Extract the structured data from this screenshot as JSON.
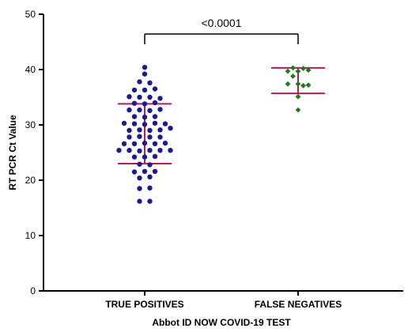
{
  "chart_data": {
    "type": "scatter",
    "title": "",
    "xlabel": "Abbot ID NOW COVID-19 TEST",
    "ylabel": "RT PCR Ct Value",
    "ylim": [
      0,
      50
    ],
    "yticks": [
      0,
      10,
      20,
      30,
      40,
      50
    ],
    "ytick_labels": [
      "0",
      "10",
      "20",
      "30",
      "40",
      "50"
    ],
    "categories": [
      "TRUE POSITIVES",
      "FALSE NEGATIVES"
    ],
    "grid": false,
    "series": [
      {
        "category": "TRUE POSITIVES",
        "marker": "circle",
        "color": "#1b1b8c",
        "mean": 28.4,
        "sd": 5.4,
        "bar_upper": 33.8,
        "bar_lower": 23.0,
        "points": [
          {
            "offset": 0,
            "y": 40.4
          },
          {
            "offset": 0,
            "y": 39.2
          },
          {
            "offset": -1,
            "y": 37.8
          },
          {
            "offset": 1,
            "y": 37.6
          },
          {
            "offset": -2,
            "y": 36.3
          },
          {
            "offset": 0,
            "y": 36.3
          },
          {
            "offset": 2,
            "y": 36.5
          },
          {
            "offset": -3,
            "y": 35.1
          },
          {
            "offset": -1,
            "y": 35.0
          },
          {
            "offset": 1,
            "y": 35.0
          },
          {
            "offset": 3,
            "y": 34.8
          },
          {
            "offset": -2,
            "y": 33.9
          },
          {
            "offset": 0,
            "y": 33.8
          },
          {
            "offset": 2,
            "y": 34.0
          },
          {
            "offset": -3,
            "y": 32.7
          },
          {
            "offset": -1,
            "y": 32.7
          },
          {
            "offset": 1,
            "y": 32.6
          },
          {
            "offset": 3,
            "y": 32.8
          },
          {
            "offset": -2,
            "y": 31.5
          },
          {
            "offset": 0,
            "y": 31.4
          },
          {
            "offset": 2,
            "y": 31.5
          },
          {
            "offset": -4,
            "y": 30.3
          },
          {
            "offset": -2,
            "y": 30.2
          },
          {
            "offset": 0,
            "y": 30.1
          },
          {
            "offset": 2,
            "y": 30.3
          },
          {
            "offset": 4,
            "y": 30.2
          },
          {
            "offset": -3,
            "y": 29.0
          },
          {
            "offset": -1,
            "y": 29.1
          },
          {
            "offset": 1,
            "y": 29.0
          },
          {
            "offset": 3,
            "y": 29.1
          },
          {
            "offset": 5,
            "y": 29.4
          },
          {
            "offset": -3,
            "y": 27.8
          },
          {
            "offset": -1,
            "y": 27.9
          },
          {
            "offset": 1,
            "y": 27.8
          },
          {
            "offset": 3,
            "y": 27.8
          },
          {
            "offset": -4,
            "y": 26.6
          },
          {
            "offset": -2,
            "y": 26.6
          },
          {
            "offset": 0,
            "y": 26.7
          },
          {
            "offset": 2,
            "y": 26.6
          },
          {
            "offset": 4,
            "y": 26.7
          },
          {
            "offset": -5,
            "y": 25.4
          },
          {
            "offset": -3,
            "y": 25.4
          },
          {
            "offset": -1,
            "y": 25.3
          },
          {
            "offset": 1,
            "y": 25.4
          },
          {
            "offset": 3,
            "y": 25.4
          },
          {
            "offset": 5,
            "y": 25.4
          },
          {
            "offset": -2,
            "y": 24.2
          },
          {
            "offset": 0,
            "y": 24.2
          },
          {
            "offset": 2,
            "y": 24.3
          },
          {
            "offset": -1,
            "y": 22.9
          },
          {
            "offset": 1,
            "y": 22.8
          },
          {
            "offset": -2,
            "y": 21.5
          },
          {
            "offset": 0,
            "y": 21.6
          },
          {
            "offset": 2,
            "y": 21.6
          },
          {
            "offset": -1,
            "y": 20.4
          },
          {
            "offset": 1,
            "y": 20.6
          },
          {
            "offset": -1,
            "y": 18.5
          },
          {
            "offset": 1,
            "y": 18.6
          },
          {
            "offset": -1,
            "y": 16.2
          },
          {
            "offset": 1,
            "y": 16.2
          }
        ]
      },
      {
        "category": "FALSE NEGATIVES",
        "marker": "diamond",
        "color": "#1f7a1f",
        "mean": 38.0,
        "sd": 2.3,
        "bar_upper": 40.3,
        "bar_lower": 35.7,
        "points": [
          {
            "offset": -1,
            "y": 40.3
          },
          {
            "offset": 1,
            "y": 40.2
          },
          {
            "offset": -2,
            "y": 39.7
          },
          {
            "offset": 0,
            "y": 39.7
          },
          {
            "offset": 2,
            "y": 39.9
          },
          {
            "offset": -1,
            "y": 38.8
          },
          {
            "offset": -2,
            "y": 37.4
          },
          {
            "offset": 0,
            "y": 37.4
          },
          {
            "offset": 1,
            "y": 37.1
          },
          {
            "offset": 2,
            "y": 37.2
          },
          {
            "offset": 0,
            "y": 35.1
          },
          {
            "offset": 0,
            "y": 32.7
          }
        ]
      }
    ],
    "significance": {
      "from": "TRUE POSITIVES",
      "to": "FALSE NEGATIVES",
      "label": "<0.0001"
    },
    "colors": {
      "axis": "#000000",
      "error_bar": "#b5195e",
      "bracket": "#000000"
    }
  }
}
